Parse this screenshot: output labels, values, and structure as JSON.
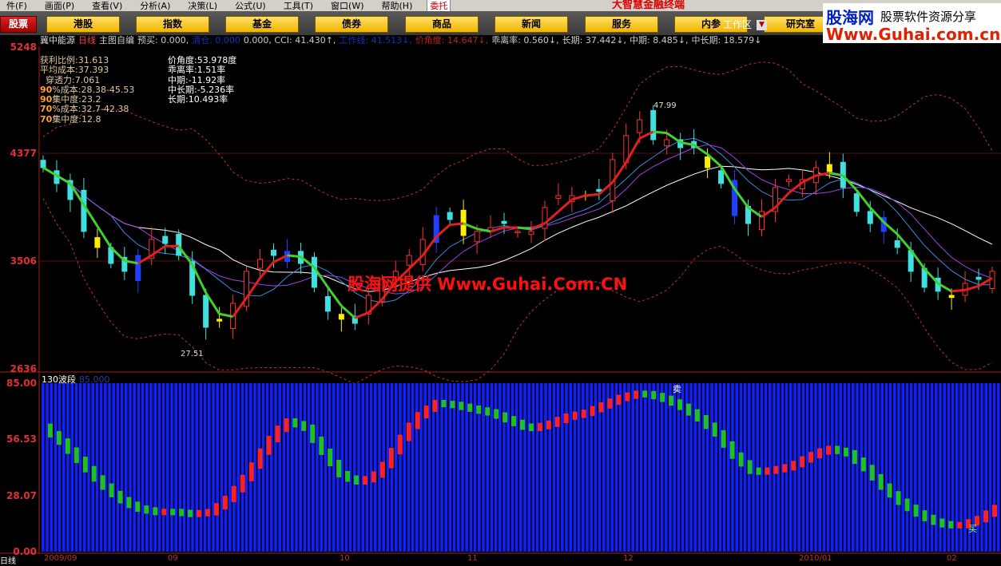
{
  "menu": {
    "items": [
      "件(F)",
      "画面(P)",
      "查看(V)",
      "分析(A)",
      "决策(L)",
      "公式(U)",
      "工具(T)",
      "窗口(W)",
      "帮助(H)"
    ],
    "entrust": "委托",
    "app_title": "大智慧金融终端"
  },
  "toolbar": {
    "buttons": [
      "股票",
      "港股",
      "指数",
      "基金",
      "债券",
      "商品",
      "新闻",
      "服务",
      "内参",
      "研究室"
    ],
    "workzone": "工作区"
  },
  "logo": {
    "line1": "股海网",
    "line2": "股票软件资源分享",
    "line3": "Www.Guhai.com.cn"
  },
  "info": {
    "stock": "冀中能源",
    "period": "日线",
    "formula": "主图自编",
    "items": [
      "预买: 0.000,",
      "清仓: 0.000",
      "0.000, CCI: 41.430↑,",
      "工作线: 41.513↓,",
      "价角度: 14.647↓,",
      "乖离率: 0.560↓,",
      "长期: 37.442↓,",
      "中期: 8.485↓,",
      "中长期: 18.579↓"
    ]
  },
  "stats": [
    {
      "p": "",
      "l": "获利比例:31.613"
    },
    {
      "p": "",
      "l": "平均成本:37.393"
    },
    {
      "p": "",
      "l": "  穿透力:7.061"
    },
    {
      "p": "90",
      "l": "%成本:28.38-45.53"
    },
    {
      "p": "90",
      "l": "集中度:23.2"
    },
    {
      "p": "70",
      "l": "%成本:32.7-42.38"
    },
    {
      "p": "70",
      "l": "集中度:12.8"
    }
  ],
  "angles": [
    "价角度:53.978度",
    "乖离率:1.51率",
    "中期:-11.92率",
    "中长期:-5.236率",
    "长期:10.493率"
  ],
  "price_axis": [
    "5248",
    "4377",
    "3506",
    "2636"
  ],
  "markers": {
    "high": "47.99",
    "low": "27.51",
    "sell": "卖",
    "buy": "买"
  },
  "watermark": "股海网提供 Www.Guhai.Com.CN",
  "oscillator": {
    "title": "130波段",
    "value": "85.000",
    "axis": [
      "85.00",
      "56.53",
      "28.07",
      "0.00"
    ]
  },
  "x_axis": [
    "2009/09",
    "09",
    "10",
    "11",
    "12",
    "2010/01",
    "02"
  ],
  "corner_label": "日线",
  "colors": {
    "up": "#ff3030",
    "down": "#40e0e0",
    "ma_short_up": "#e02020",
    "ma_short_down": "#40d030",
    "band": "#c03030",
    "osc_bg": "#1020ff"
  },
  "chart_data": {
    "type": "candlestick",
    "ylim": [
      2636,
      5248
    ],
    "closes": [
      4263,
      4134,
      4004,
      3745,
      3615,
      3485,
      3421,
      3550,
      3680,
      3647,
      3550,
      3226,
      2967,
      3032,
      3161,
      3421,
      3518,
      3550,
      3583,
      3485,
      3291,
      3097,
      3032,
      2999,
      3226,
      3356,
      3421,
      3550,
      3680,
      3874,
      3842,
      3712,
      3745,
      3777,
      3809,
      3745,
      3745,
      3939,
      4036,
      4036,
      4036,
      4069,
      4328,
      4522,
      4652,
      4490,
      4490,
      4425,
      4425,
      4263,
      4134,
      3874,
      3809,
      3907,
      4101,
      4166,
      4166,
      4263,
      4231,
      4101,
      3907,
      3809,
      3745,
      3615,
      3421,
      3291,
      3259,
      3226,
      3323,
      3356,
      3421
    ],
    "oscillator": [
      63,
      55,
      45,
      35,
      27,
      22,
      20,
      20,
      19,
      20,
      28,
      40,
      55,
      66,
      63,
      50,
      38,
      35,
      40,
      55,
      68,
      75,
      74,
      72,
      70,
      66,
      62,
      64,
      68,
      70,
      74,
      78,
      80,
      78,
      74,
      68,
      60,
      48,
      40,
      41,
      43,
      48,
      52,
      50,
      42,
      32,
      24,
      18,
      14,
      13,
      16,
      22
    ]
  }
}
